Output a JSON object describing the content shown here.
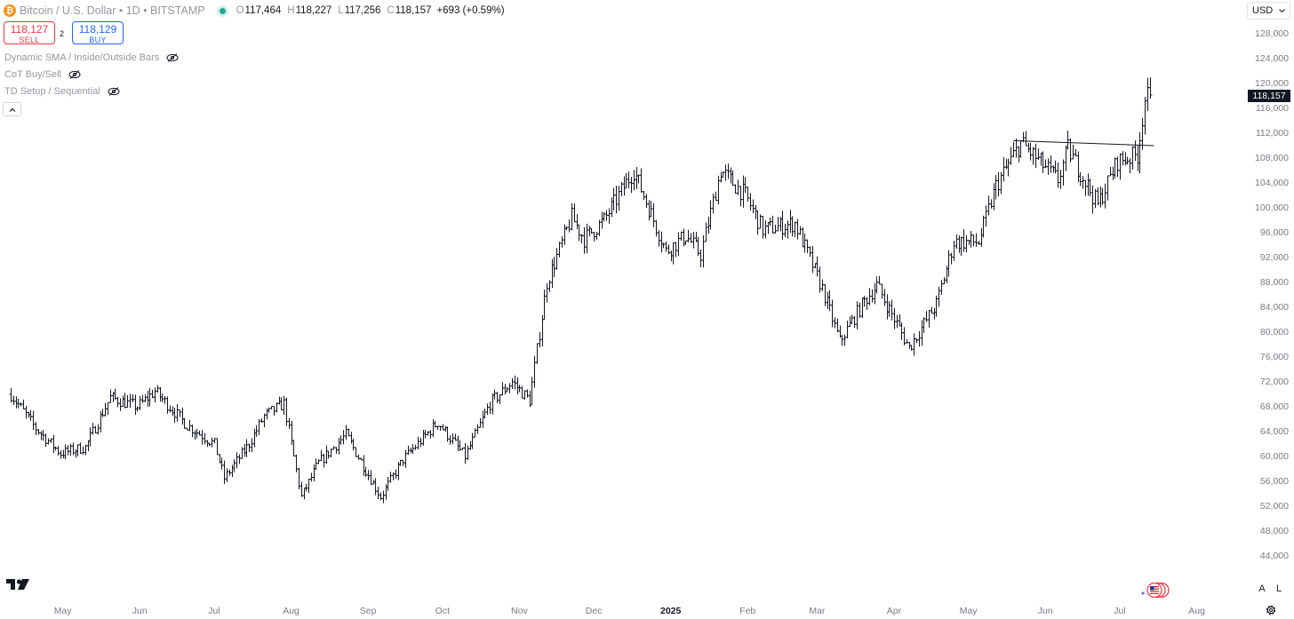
{
  "header": {
    "symbol_icon": "bitcoin-icon",
    "symbol_letter": "₿",
    "title": "Bitcoin / U.S. Dollar • 1D • BITSTAMP",
    "ohlc": {
      "o_label": "O",
      "o_value": "117,464",
      "h_label": "H",
      "h_value": "118,227",
      "l_label": "L",
      "l_value": "117,256",
      "c_label": "C",
      "c_value": "118,157",
      "change": "+693 (+0.59%)"
    }
  },
  "trade": {
    "sell_price": "118,127",
    "sell_label": "SELL",
    "spread": "2",
    "buy_price": "118,129",
    "buy_label": "BUY"
  },
  "indicators": [
    {
      "label": "Dynamic SMA / Inside/Outside Bars",
      "icon": "eye-hidden-icon"
    },
    {
      "label": "CoT Buy/Sell",
      "icon": "eye-hidden-icon"
    },
    {
      "label": "TD Setup / Sequential",
      "icon": "eye-hidden-icon"
    }
  ],
  "collapse_icon": "chevron-up-icon",
  "currency": {
    "value": "USD",
    "icon": "chevron-down-icon"
  },
  "last_price": "118,157",
  "bottom": {
    "auto_label": "A",
    "log_label": "L",
    "settings_icon": "gear-icon",
    "logo_icon": "tradingview-logo-icon",
    "badge_icon": "flag-badge-icon"
  },
  "colors": {
    "bars": "#131722",
    "sell": "#f23645",
    "buy": "#2962ff",
    "live": "#22ab94",
    "bitcoin": "#f7931a"
  },
  "chart_data": {
    "type": "ohlc",
    "y_ticks": [
      "128,000",
      "124,000",
      "120,000",
      "116,000",
      "112,000",
      "108,000",
      "104,000",
      "100,000",
      "96,000",
      "92,000",
      "88,000",
      "84,000",
      "80,000",
      "76,000",
      "72,000",
      "68,000",
      "64,000",
      "60,000",
      "56,000",
      "52,000",
      "48,000",
      "44,000"
    ],
    "y_tick_values": [
      128000,
      124000,
      120000,
      116000,
      112000,
      108000,
      104000,
      100000,
      96000,
      92000,
      88000,
      84000,
      80000,
      76000,
      72000,
      68000,
      64000,
      60000,
      56000,
      52000,
      48000,
      44000
    ],
    "ylim": [
      41000,
      130500
    ],
    "x_ticks": [
      {
        "label": "May",
        "date": "2024-05-01",
        "year": false
      },
      {
        "label": "Jun",
        "date": "2024-06-01",
        "year": false
      },
      {
        "label": "Jul",
        "date": "2024-07-01",
        "year": false
      },
      {
        "label": "Aug",
        "date": "2024-08-01",
        "year": false
      },
      {
        "label": "Sep",
        "date": "2024-09-01",
        "year": false
      },
      {
        "label": "Oct",
        "date": "2024-10-01",
        "year": false
      },
      {
        "label": "Nov",
        "date": "2024-11-01",
        "year": false
      },
      {
        "label": "Dec",
        "date": "2024-12-01",
        "year": false
      },
      {
        "label": "2025",
        "date": "2025-01-01",
        "year": true
      },
      {
        "label": "Feb",
        "date": "2025-02-01",
        "year": false
      },
      {
        "label": "Mar",
        "date": "2025-03-01",
        "year": false
      },
      {
        "label": "Apr",
        "date": "2025-04-01",
        "year": false
      },
      {
        "label": "May",
        "date": "2025-05-01",
        "year": false
      },
      {
        "label": "Jun",
        "date": "2025-06-01",
        "year": false
      },
      {
        "label": "Jul",
        "date": "2025-07-01",
        "year": false
      },
      {
        "label": "Aug",
        "date": "2025-08-01",
        "year": false
      }
    ],
    "price_path": [
      [
        "2024-04-10",
        70000
      ],
      [
        "2024-04-20",
        64500
      ],
      [
        "2024-04-30",
        60500
      ],
      [
        "2024-05-10",
        61500
      ],
      [
        "2024-05-20",
        69500
      ],
      [
        "2024-05-31",
        68000
      ],
      [
        "2024-06-07",
        70500
      ],
      [
        "2024-06-20",
        65000
      ],
      [
        "2024-07-01",
        62000
      ],
      [
        "2024-07-05",
        56500
      ],
      [
        "2024-07-15",
        62000
      ],
      [
        "2024-07-21",
        66500
      ],
      [
        "2024-07-29",
        68500
      ],
      [
        "2024-08-05",
        53500
      ],
      [
        "2024-08-12",
        59000
      ],
      [
        "2024-08-23",
        63500
      ],
      [
        "2024-09-06",
        53500
      ],
      [
        "2024-09-15",
        59500
      ],
      [
        "2024-09-29",
        65500
      ],
      [
        "2024-10-10",
        60000
      ],
      [
        "2024-10-20",
        68500
      ],
      [
        "2024-10-29",
        72000
      ],
      [
        "2024-11-05",
        69000
      ],
      [
        "2024-11-12",
        88000
      ],
      [
        "2024-11-22",
        98500
      ],
      [
        "2024-11-27",
        95000
      ],
      [
        "2024-12-05",
        98000
      ],
      [
        "2024-12-17",
        106000
      ],
      [
        "2024-12-30",
        93000
      ],
      [
        "2025-01-07",
        95500
      ],
      [
        "2025-01-13",
        92500
      ],
      [
        "2025-01-21",
        106000
      ],
      [
        "2025-01-31",
        102000
      ],
      [
        "2025-02-07",
        96500
      ],
      [
        "2025-02-20",
        97500
      ],
      [
        "2025-03-03",
        87000
      ],
      [
        "2025-03-10",
        78500
      ],
      [
        "2025-03-20",
        85000
      ],
      [
        "2025-03-25",
        87500
      ],
      [
        "2025-04-07",
        77500
      ],
      [
        "2025-04-18",
        84500
      ],
      [
        "2025-04-25",
        94500
      ],
      [
        "2025-05-05",
        94500
      ],
      [
        "2025-05-12",
        103500
      ],
      [
        "2025-05-22",
        110500
      ],
      [
        "2025-06-06",
        104500
      ],
      [
        "2025-06-10",
        109500
      ],
      [
        "2025-06-22",
        100500
      ],
      [
        "2025-06-30",
        107500
      ],
      [
        "2025-07-08",
        108500
      ],
      [
        "2025-07-11",
        117500
      ],
      [
        "2025-07-13",
        118157
      ]
    ],
    "trendline": {
      "x": [
        "2025-05-22",
        "2025-07-13"
      ],
      "y": [
        110800,
        110000
      ]
    },
    "last_close": 118157
  }
}
